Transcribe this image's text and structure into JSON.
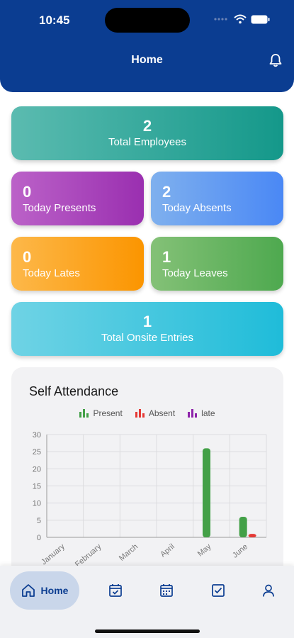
{
  "status_bar": {
    "time": "10:45"
  },
  "header": {
    "title": "Home",
    "bell_icon": "bell-icon"
  },
  "cards": {
    "total_employees": {
      "value": "2",
      "label": "Total Employees"
    },
    "today_presents": {
      "value": "0",
      "label": "Today Presents"
    },
    "today_absents": {
      "value": "2",
      "label": "Today Absents"
    },
    "today_lates": {
      "value": "0",
      "label": "Today Lates"
    },
    "today_leaves": {
      "value": "1",
      "label": "Today Leaves"
    },
    "total_onsite": {
      "value": "1",
      "label": "Total Onsite Entries"
    }
  },
  "colors": {
    "header": "#0b3d91",
    "present": "#43a047",
    "absent": "#e53935",
    "late": "#8e24aa"
  },
  "chart_data": {
    "type": "bar",
    "title": "Self Attendance",
    "categories": [
      "January",
      "February",
      "March",
      "April",
      "May",
      "June"
    ],
    "series": [
      {
        "name": "Present",
        "color": "#43a047",
        "values": [
          0,
          0,
          0,
          0,
          26,
          6
        ]
      },
      {
        "name": "Absent",
        "color": "#e53935",
        "values": [
          0,
          0,
          0,
          0,
          0,
          1
        ]
      },
      {
        "name": "late",
        "color": "#8e24aa",
        "values": [
          0,
          0,
          0,
          0,
          0,
          0
        ]
      }
    ],
    "ylim": [
      0,
      30
    ],
    "yticks": [
      "0",
      "5",
      "10",
      "15",
      "20",
      "25",
      "30"
    ],
    "grid": true,
    "legend": "top"
  },
  "bottom_nav": {
    "home_label": "Home",
    "icons": [
      "home-icon",
      "attendance-check-icon",
      "calendar-icon",
      "checkbox-icon",
      "profile-icon"
    ]
  }
}
